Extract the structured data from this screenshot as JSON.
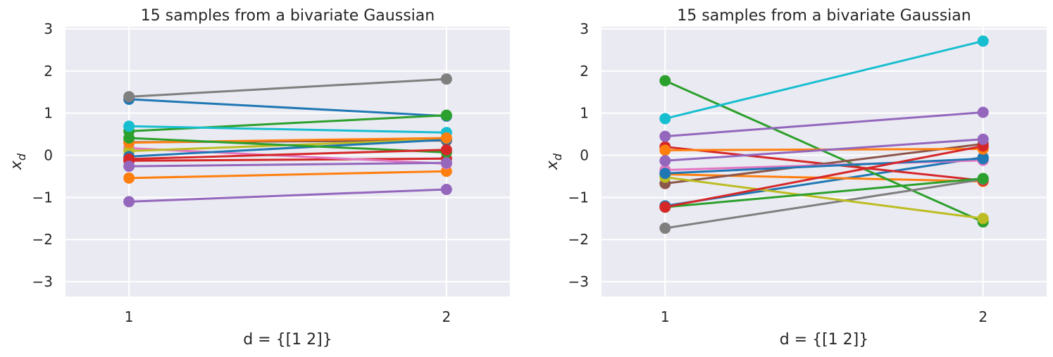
{
  "chart_data": [
    {
      "type": "line",
      "title": "15 samples from a bivariate Gaussian",
      "xlabel": "d = {[1 2]}",
      "ylabel_main": "x",
      "ylabel_sub": "d",
      "x": [
        1,
        2
      ],
      "xlim": [
        0.8,
        2.2
      ],
      "ylim": [
        -3.35,
        3.05
      ],
      "xticks": [
        1,
        2
      ],
      "xtick_labels": [
        "1",
        "2"
      ],
      "yticks": [
        -3,
        -2,
        -1,
        0,
        1,
        2,
        3
      ],
      "ytick_labels": [
        "−3",
        "−2",
        "−1",
        "0",
        "1",
        "2",
        "3"
      ],
      "grid": true,
      "series": [
        {
          "color": "#1f77b4",
          "values": [
            1.33,
            0.93
          ]
        },
        {
          "color": "#ff7f0e",
          "values": [
            -0.54,
            -0.38
          ]
        },
        {
          "color": "#2ca02c",
          "values": [
            0.57,
            0.95
          ]
        },
        {
          "color": "#d62728",
          "values": [
            -0.13,
            -0.08
          ]
        },
        {
          "color": "#9467bd",
          "values": [
            -1.1,
            -0.81
          ]
        },
        {
          "color": "#8c564b",
          "values": [
            0.31,
            0.35
          ]
        },
        {
          "color": "#e377c2",
          "values": [
            0.17,
            -0.2
          ]
        },
        {
          "color": "#7f7f7f",
          "values": [
            1.39,
            1.81
          ]
        },
        {
          "color": "#bcbd22",
          "values": [
            0.1,
            0.38
          ]
        },
        {
          "color": "#17becf",
          "values": [
            0.69,
            0.54
          ]
        },
        {
          "color": "#1f77b4",
          "values": [
            -0.03,
            0.37
          ]
        },
        {
          "color": "#ff7f0e",
          "values": [
            0.3,
            0.41
          ]
        },
        {
          "color": "#2ca02c",
          "values": [
            0.41,
            0.07
          ]
        },
        {
          "color": "#d62728",
          "values": [
            -0.09,
            0.13
          ]
        },
        {
          "color": "#9467bd",
          "values": [
            -0.26,
            -0.18
          ]
        }
      ]
    },
    {
      "type": "line",
      "title": "15 samples from a bivariate Gaussian",
      "xlabel": "d = {[1 2]}",
      "ylabel_main": "x",
      "ylabel_sub": "d",
      "x": [
        1,
        2
      ],
      "xlim": [
        0.8,
        2.2
      ],
      "ylim": [
        -3.35,
        3.05
      ],
      "xticks": [
        1,
        2
      ],
      "xtick_labels": [
        "1",
        "2"
      ],
      "yticks": [
        -3,
        -2,
        -1,
        0,
        1,
        2,
        3
      ],
      "ytick_labels": [
        "−3",
        "−2",
        "−1",
        "0",
        "1",
        "2",
        "3"
      ],
      "grid": true,
      "series": [
        {
          "color": "#1f77b4",
          "values": [
            -1.2,
            -0.05
          ]
        },
        {
          "color": "#ff7f0e",
          "values": [
            -0.45,
            -0.62
          ]
        },
        {
          "color": "#2ca02c",
          "values": [
            1.77,
            -1.58
          ]
        },
        {
          "color": "#d62728",
          "values": [
            0.2,
            -0.6
          ]
        },
        {
          "color": "#9467bd",
          "values": [
            0.45,
            1.02
          ]
        },
        {
          "color": "#8c564b",
          "values": [
            -0.67,
            0.27
          ]
        },
        {
          "color": "#e377c2",
          "values": [
            -0.35,
            -0.12
          ]
        },
        {
          "color": "#7f7f7f",
          "values": [
            -1.73,
            -0.57
          ]
        },
        {
          "color": "#bcbd22",
          "values": [
            -0.52,
            -1.5
          ]
        },
        {
          "color": "#17becf",
          "values": [
            0.87,
            2.71
          ]
        },
        {
          "color": "#1f77b4",
          "values": [
            -0.43,
            -0.08
          ]
        },
        {
          "color": "#ff7f0e",
          "values": [
            0.12,
            0.15
          ]
        },
        {
          "color": "#2ca02c",
          "values": [
            -1.23,
            -0.55
          ]
        },
        {
          "color": "#d62728",
          "values": [
            -1.23,
            0.22
          ]
        },
        {
          "color": "#9467bd",
          "values": [
            -0.13,
            0.38
          ]
        }
      ]
    }
  ]
}
